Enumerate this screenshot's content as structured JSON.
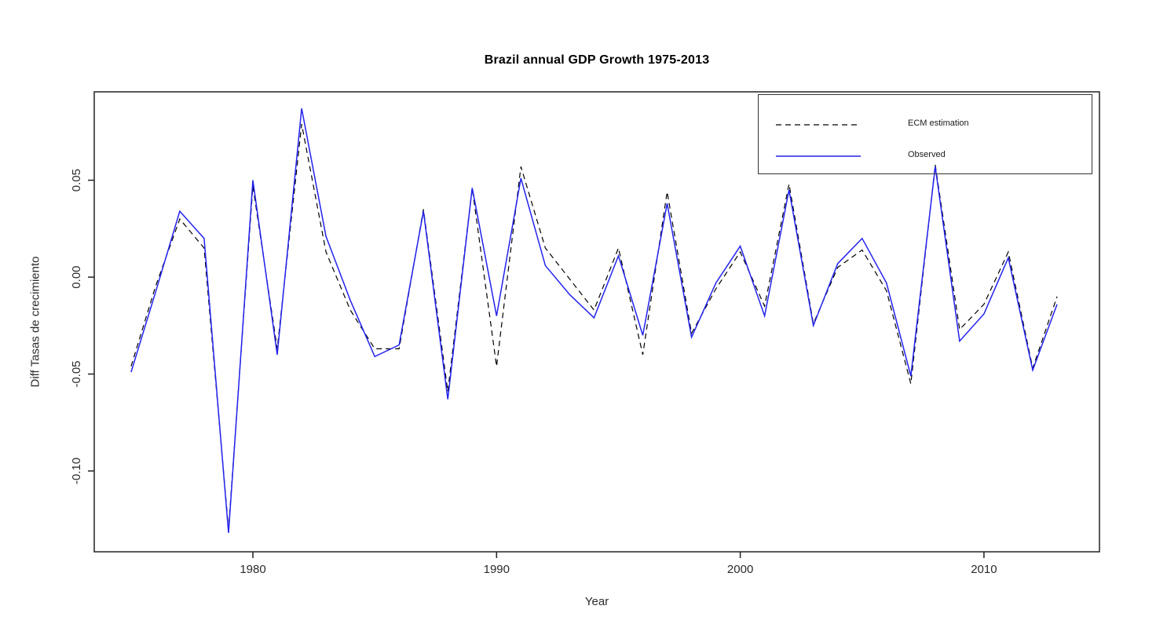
{
  "header": {
    "title": "Brazil annual GDP Growth 1975-2013"
  },
  "axes": {
    "x_title": "Year",
    "y_title": "Diff Tasas de crecimiento"
  },
  "legend": {
    "position": "top-right",
    "items": [
      {
        "label": "ECM estimation",
        "style": "dashed",
        "color": "#000000"
      },
      {
        "label": "Observed",
        "style": "solid",
        "color": "#2222ee"
      }
    ]
  },
  "chart_data": {
    "type": "line",
    "title": "Brazil annual GDP Growth 1975-2013",
    "xlabel": "Year",
    "ylabel": "Diff Tasas de crecimiento",
    "grid": false,
    "legend_position": "top-right",
    "xlim": [
      1973.49,
      2014.74
    ],
    "ylim": [
      -0.1417,
      0.0956
    ],
    "x_ticks": {
      "values": [
        1980,
        1990,
        2000,
        2010
      ],
      "labels": [
        "1980",
        "1990",
        "2000",
        "2010"
      ]
    },
    "y_ticks": {
      "values": [
        0.05,
        0.0,
        -0.05,
        -0.1
      ],
      "labels": [
        "0.05",
        "0.00",
        "-0.05",
        "-0.10"
      ]
    },
    "x": [
      1975,
      1976,
      1977,
      1978,
      1979,
      1980,
      1981,
      1982,
      1983,
      1984,
      1985,
      1986,
      1987,
      1988,
      1989,
      1990,
      1991,
      1992,
      1993,
      1994,
      1995,
      1996,
      1997,
      1998,
      1999,
      2000,
      2001,
      2002,
      2003,
      2004,
      2005,
      2006,
      2007,
      2008,
      2009,
      2010,
      2011,
      2012,
      2013
    ],
    "series": [
      {
        "name": "ECM estimation",
        "color": "#000000",
        "style": "dashed",
        "values": [
          -0.046,
          -0.005,
          0.03,
          0.015,
          -0.13,
          0.047,
          -0.037,
          0.079,
          0.013,
          -0.017,
          -0.037,
          -0.037,
          0.035,
          -0.059,
          0.046,
          -0.046,
          0.057,
          0.015,
          -0.001,
          -0.017,
          0.015,
          -0.04,
          0.044,
          -0.029,
          -0.006,
          0.013,
          -0.015,
          0.048,
          -0.024,
          0.005,
          0.014,
          -0.007,
          -0.055,
          0.058,
          -0.027,
          -0.014,
          0.013,
          -0.047,
          -0.01
        ]
      },
      {
        "name": "Observed",
        "color": "#2222ee",
        "style": "solid",
        "values": [
          -0.049,
          -0.008,
          0.034,
          0.02,
          -0.132,
          0.05,
          -0.04,
          0.087,
          0.021,
          -0.012,
          -0.041,
          -0.035,
          0.034,
          -0.063,
          0.046,
          -0.02,
          0.051,
          0.006,
          -0.009,
          -0.021,
          0.011,
          -0.03,
          0.038,
          -0.031,
          -0.003,
          0.016,
          -0.02,
          0.045,
          -0.025,
          0.007,
          0.02,
          -0.003,
          -0.051,
          0.057,
          -0.033,
          -0.019,
          0.01,
          -0.048,
          -0.014
        ]
      }
    ]
  }
}
